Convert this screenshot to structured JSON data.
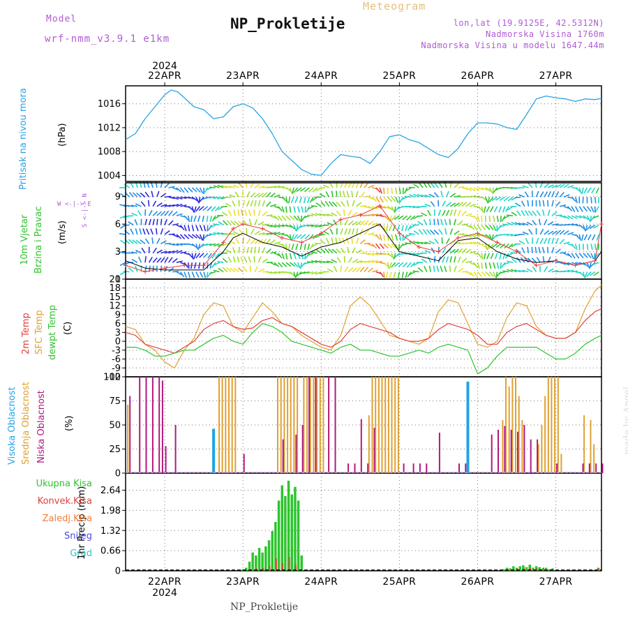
{
  "header": {
    "model_label": "Model",
    "model_version": "wrf-nmm_v3.9.1 e1km",
    "station": "NP_Prokletije",
    "title": "Meteogram",
    "coords": "lon,lat (19.9125E, 42.5312N)",
    "elevation": "Nadmorska Visina 1760m",
    "model_elevation": "Nadmorska Visina u modelu 1647.44m"
  },
  "time_axis": {
    "year": "2024",
    "days": [
      "22APR",
      "23APR",
      "24APR",
      "25APR",
      "26APR",
      "27APR"
    ],
    "start_hour": 0,
    "end_hour": 146,
    "day_hours": [
      12,
      36,
      60,
      84,
      108,
      132
    ]
  },
  "colors": {
    "pressure": "#29a3e6",
    "wind_speed": "#000000",
    "wind_gust": "#e83a3a",
    "temp2m": "#e0413b",
    "sfc_temp": "#e0a030",
    "dewpoint": "#2ec42e",
    "cloud_high": "#1ea3e6",
    "cloud_mid": "#e0a030",
    "cloud_low": "#b0187e",
    "precip_total": "#2ec42e",
    "precip_conv": "#e0413b",
    "precip_frozen": "#f0803a",
    "snow": "#4a4ae0",
    "graupel": "#2ec4c4",
    "label_purple": "#b05ad6"
  },
  "panels": {
    "pressure": {
      "label": "Pritisak na nivou mora",
      "unit": "(hPa)",
      "ticks": [
        "1004",
        "1008",
        "1012",
        "1016"
      ]
    },
    "wind": {
      "label1": "10m Vjetar",
      "label2": "Brzina i Pravac",
      "unit": "(m/s)",
      "ticks": [
        "0",
        "3",
        "6",
        "9"
      ],
      "compass": "W <-|-> E",
      "compass_ns": "S <-|-> N"
    },
    "temp": {
      "label1": "2m Temp",
      "label2": "SFC Temp",
      "label3": "dewpt Temp",
      "unit": "(C)",
      "ticks": [
        "-12",
        "-9",
        "-6",
        "-3",
        "0",
        "3",
        "6",
        "9",
        "12",
        "15",
        "18",
        "21"
      ]
    },
    "cloud": {
      "label1": "Visoka Oblacnost",
      "label2": "Srednja Oblacnost",
      "label3": "Niska Oblacnost",
      "unit": "(%)",
      "ticks": [
        "0",
        "25",
        "50",
        "75",
        "100"
      ]
    },
    "precip": {
      "label": "1hr Precip (mm)",
      "ticks": [
        "0",
        "0.66",
        "1.32",
        "1.98",
        "2.64"
      ],
      "legend": [
        "Ukupna Kisa",
        "Konvek.Kisa",
        "Zaledj.Kisa",
        "Snijeg",
        "Grad"
      ]
    }
  },
  "footer": "NP_Prokletije",
  "watermark": "made by Angel",
  "chart_data": [
    {
      "type": "line",
      "title": "",
      "ylabel": "Pritisak na nivou mora (hPa)",
      "ylim": [
        1003,
        1019
      ],
      "x_unit": "hours from 2024-04-22 00:00",
      "series": [
        {
          "name": "Pritisak na nivou mora",
          "x": [
            0,
            3,
            6,
            9,
            12,
            14,
            16,
            18,
            21,
            24,
            27,
            30,
            33,
            36,
            39,
            42,
            45,
            48,
            51,
            54,
            57,
            60,
            63,
            66,
            69,
            72,
            75,
            78,
            81,
            84,
            87,
            90,
            93,
            96,
            99,
            102,
            105,
            108,
            111,
            114,
            117,
            120,
            123,
            126,
            129,
            132,
            135,
            138,
            141,
            144,
            146
          ],
          "y": [
            1010,
            1011,
            1013.5,
            1015.5,
            1017.5,
            1018.3,
            1018,
            1017,
            1015.5,
            1015,
            1013.5,
            1013.8,
            1015.5,
            1016,
            1015.3,
            1013.5,
            1011,
            1008,
            1006.5,
            1005,
            1004.2,
            1004,
            1006,
            1007.5,
            1007.2,
            1007,
            1006,
            1008,
            1010.5,
            1010.8,
            1010,
            1009.5,
            1008.5,
            1007.5,
            1007,
            1008.5,
            1011,
            1012.8,
            1012.8,
            1012.6,
            1012,
            1011.7,
            1014.2,
            1016.8,
            1017.3,
            1017,
            1016.8,
            1016.4,
            1016.8,
            1016.7,
            1016.9
          ]
        }
      ]
    },
    {
      "type": "line",
      "title": "",
      "ylabel": "10m Vjetar Brzina i Pravac (m/s)",
      "ylim": [
        0,
        10.5
      ],
      "series": [
        {
          "name": "wind speed",
          "x": [
            0,
            6,
            12,
            18,
            24,
            30,
            33,
            36,
            42,
            48,
            54,
            60,
            66,
            72,
            78,
            84,
            90,
            96,
            102,
            108,
            114,
            120,
            126,
            132,
            138,
            144,
            146
          ],
          "y": [
            2,
            1.2,
            1,
            1,
            1,
            3,
            4.5,
            5,
            4,
            3.5,
            2.5,
            3.5,
            4,
            5,
            6,
            3,
            2.5,
            2,
            4.2,
            4.5,
            3,
            2.2,
            1.8,
            2,
            1.5,
            2,
            3
          ]
        },
        {
          "name": "wind gust",
          "x": [
            0,
            6,
            12,
            18,
            24,
            30,
            33,
            36,
            42,
            48,
            54,
            60,
            66,
            72,
            78,
            84,
            90,
            96,
            102,
            108,
            114,
            120,
            126,
            132,
            138,
            144,
            146
          ],
          "y": [
            1.5,
            0.8,
            1.2,
            1.5,
            1.5,
            4,
            5.5,
            6,
            5.5,
            4.5,
            4,
            5,
            6.5,
            7,
            8,
            5,
            3.5,
            3,
            4.5,
            5,
            4,
            3,
            1.5,
            2,
            1.5,
            2,
            6
          ]
        }
      ]
    },
    {
      "type": "line",
      "title": "",
      "ylabel": "Temp (C)",
      "ylim": [
        -12,
        21
      ],
      "series": [
        {
          "name": "2m Temp",
          "x": [
            0,
            3,
            6,
            9,
            12,
            15,
            18,
            21,
            24,
            27,
            30,
            33,
            36,
            39,
            42,
            45,
            48,
            51,
            54,
            57,
            60,
            63,
            66,
            69,
            72,
            75,
            78,
            81,
            84,
            87,
            90,
            93,
            96,
            99,
            102,
            105,
            108,
            111,
            114,
            117,
            120,
            123,
            126,
            129,
            132,
            135,
            138,
            141,
            144,
            146
          ],
          "y": [
            3,
            2,
            -1,
            -2,
            -3,
            -4,
            -2,
            0,
            4,
            6,
            7,
            5,
            4,
            4.5,
            7,
            8,
            6,
            5,
            3,
            1,
            -1,
            -2,
            0,
            4,
            6,
            5,
            4,
            3,
            1,
            0,
            0,
            1,
            4,
            6,
            5,
            4,
            2,
            -1,
            -1,
            3,
            5,
            6,
            4,
            2,
            1,
            1,
            3,
            7,
            10,
            11
          ]
        },
        {
          "name": "SFC Temp",
          "x": [
            0,
            3,
            6,
            9,
            12,
            15,
            18,
            21,
            24,
            27,
            30,
            33,
            36,
            39,
            42,
            45,
            48,
            51,
            54,
            57,
            60,
            63,
            66,
            69,
            72,
            75,
            78,
            81,
            84,
            87,
            90,
            93,
            96,
            99,
            102,
            105,
            108,
            111,
            114,
            117,
            120,
            123,
            126,
            129,
            132,
            135,
            138,
            141,
            144,
            146
          ],
          "y": [
            5,
            4,
            -1,
            -3,
            -7,
            -9,
            -3,
            1,
            9,
            13,
            12,
            5,
            3,
            8,
            13,
            10,
            6,
            5,
            2,
            0,
            -2,
            -3,
            2,
            12,
            15,
            12,
            7,
            2,
            1,
            0,
            -1,
            1,
            10,
            14,
            13,
            6,
            -1,
            -2,
            0,
            8,
            13,
            12,
            5,
            2,
            1,
            1,
            3,
            11,
            17,
            19
          ]
        },
        {
          "name": "dewpt Temp",
          "x": [
            0,
            3,
            6,
            9,
            12,
            15,
            18,
            21,
            24,
            27,
            30,
            33,
            36,
            39,
            42,
            45,
            48,
            51,
            54,
            57,
            60,
            63,
            66,
            69,
            72,
            75,
            78,
            81,
            84,
            87,
            90,
            93,
            96,
            99,
            102,
            105,
            108,
            111,
            114,
            117,
            120,
            123,
            126,
            129,
            132,
            135,
            138,
            141,
            144,
            146
          ],
          "y": [
            -2,
            -2,
            -3,
            -5,
            -5,
            -4,
            -3,
            -3,
            -1,
            1,
            2,
            0,
            -1,
            3,
            6,
            5,
            3,
            0,
            -1,
            -2,
            -3,
            -4,
            -2,
            -1,
            -3,
            -3,
            -4,
            -5,
            -5,
            -4,
            -3,
            -4,
            -2,
            -1,
            -2,
            -3,
            -11,
            -9,
            -5,
            -2,
            -2,
            -2,
            -2,
            -4,
            -6,
            -6,
            -4,
            -1,
            1,
            2
          ]
        }
      ]
    },
    {
      "type": "bar",
      "title": "",
      "ylabel": "Oblacnost (%)",
      "ylim": [
        0,
        100
      ],
      "series": [
        {
          "name": "Visoka Oblacnost",
          "x": [
            27,
            105
          ],
          "y": [
            46,
            95
          ]
        },
        {
          "name": "Srednja Oblacnost",
          "x": [
            1,
            29,
            30,
            31,
            32,
            33,
            34,
            47,
            48,
            49,
            50,
            51,
            52,
            53,
            55,
            56,
            57,
            58,
            59,
            60,
            61,
            75,
            76,
            77,
            78,
            79,
            80,
            81,
            82,
            83,
            84,
            116,
            117,
            118,
            119,
            120,
            121,
            122,
            127,
            128,
            129,
            130,
            131,
            132,
            133,
            134,
            141,
            143,
            144
          ],
          "y": [
            71,
            100,
            100,
            100,
            100,
            100,
            100,
            100,
            100,
            100,
            100,
            100,
            100,
            100,
            100,
            100,
            100,
            100,
            100,
            100,
            100,
            60,
            100,
            100,
            100,
            100,
            100,
            100,
            100,
            100,
            100,
            55,
            100,
            90,
            100,
            100,
            80,
            55,
            30,
            50,
            80,
            100,
            100,
            100,
            100,
            20,
            60,
            55,
            30
          ]
        },
        {
          "name": "Niska Oblacnost",
          "x": [
            1,
            4,
            6,
            8,
            10,
            11,
            12,
            15,
            36,
            48,
            52,
            54,
            56,
            58,
            62,
            64,
            68,
            70,
            72,
            74,
            76,
            85,
            88,
            90,
            92,
            96,
            102,
            104,
            112,
            114,
            116,
            118,
            120,
            122,
            124,
            126,
            132,
            140,
            142,
            144,
            146
          ],
          "y": [
            80,
            100,
            100,
            100,
            100,
            96,
            28,
            50,
            20,
            35,
            40,
            50,
            100,
            100,
            100,
            100,
            10,
            10,
            56,
            10,
            47,
            10,
            10,
            10,
            10,
            42,
            10,
            10,
            40,
            45,
            49,
            45,
            43,
            50,
            35,
            35,
            10,
            10,
            10,
            10,
            10
          ]
        }
      ]
    },
    {
      "type": "bar",
      "title": "",
      "ylabel": "1hr Precip (mm)",
      "ylim": [
        0,
        3.2
      ],
      "series": [
        {
          "name": "Ukupna Kisa",
          "x": [
            36,
            37,
            38,
            39,
            40,
            41,
            42,
            43,
            44,
            45,
            46,
            47,
            48,
            49,
            50,
            51,
            52,
            53,
            54,
            116,
            117,
            118,
            119,
            120,
            121,
            122,
            123,
            124,
            125,
            126,
            127,
            128,
            129,
            130,
            131,
            145
          ],
          "y": [
            0.05,
            0.1,
            0.3,
            0.6,
            0.5,
            0.75,
            0.6,
            0.8,
            1.0,
            1.3,
            1.6,
            2.3,
            2.8,
            2.45,
            2.95,
            2.5,
            2.75,
            2.3,
            0.5,
            0.05,
            0.1,
            0.08,
            0.15,
            0.1,
            0.15,
            0.18,
            0.12,
            0.2,
            0.1,
            0.15,
            0.12,
            0.08,
            0.1,
            0.05,
            0.08,
            0.1
          ]
        },
        {
          "name": "Konvek.Kisa",
          "x": [
            38,
            40,
            42,
            44,
            46,
            48,
            50,
            52,
            118,
            120,
            122,
            124,
            126,
            128,
            130,
            145
          ],
          "y": [
            0.05,
            0.08,
            0.1,
            0.15,
            0.4,
            0.25,
            0.45,
            0.2,
            0.05,
            0.08,
            0.1,
            0.1,
            0.08,
            0.1,
            0.05,
            0.08
          ]
        },
        {
          "name": "Zaledj.Kisa",
          "x": [],
          "y": []
        },
        {
          "name": "Snijeg",
          "x": [],
          "y": []
        },
        {
          "name": "Grad",
          "x": [],
          "y": []
        }
      ]
    }
  ]
}
